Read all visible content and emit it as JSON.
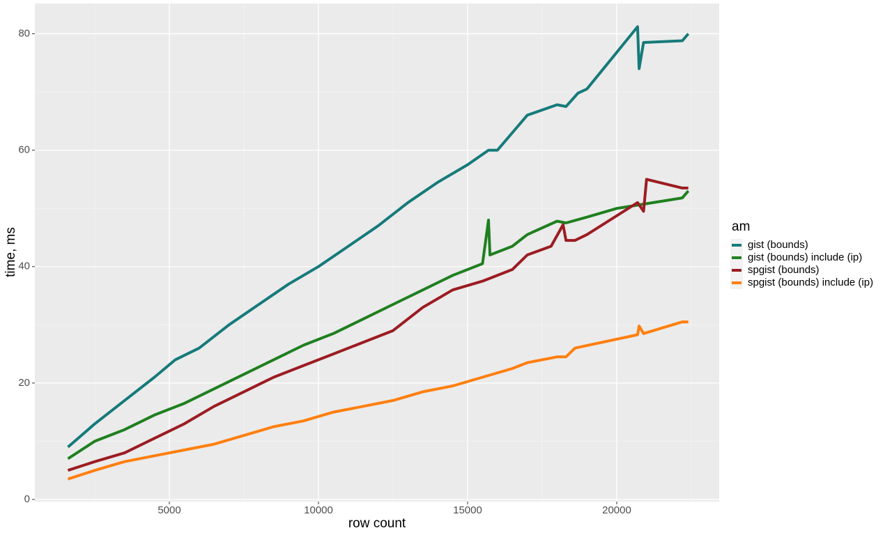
{
  "chart_data": {
    "type": "line",
    "x_label": "row count",
    "y_label": "time, ms",
    "legend_title": "am",
    "xlim": [
      490,
      23435
    ],
    "ylim": [
      -0.36,
      85.2
    ],
    "xticks": [
      5000,
      10000,
      15000,
      20000
    ],
    "yticks": [
      0,
      20,
      40,
      60,
      80
    ],
    "xminorticks": [
      2500,
      7500,
      12500,
      17500,
      22500
    ],
    "yminorticks": [
      10,
      30,
      50,
      70
    ],
    "grid": true,
    "legend_position": "right",
    "series": [
      {
        "name": "gist (bounds)",
        "color": "#167a7a",
        "x": [
          1600,
          2500,
          3500,
          4500,
          5200,
          6000,
          7000,
          8000,
          9000,
          10000,
          11000,
          12000,
          13000,
          14000,
          15000,
          15700,
          16000,
          16500,
          17000,
          18000,
          18300,
          18700,
          19000,
          20700,
          20750,
          20900,
          22200,
          22400
        ],
        "values": [
          9,
          13,
          17,
          21,
          24,
          26,
          30,
          33.5,
          37,
          40,
          43.5,
          47,
          51,
          54.5,
          57.5,
          60,
          60,
          63,
          66,
          67.8,
          67.5,
          69.8,
          70.5,
          81.2,
          74,
          78.5,
          78.8,
          80
        ]
      },
      {
        "name": "gist (bounds) include (ip)",
        "color": "#1f7f1f",
        "x": [
          1600,
          2500,
          3500,
          4500,
          5500,
          6500,
          7500,
          8500,
          9500,
          10500,
          11500,
          12500,
          13500,
          14500,
          15500,
          15700,
          15750,
          16500,
          17000,
          18000,
          18300,
          19000,
          20000,
          22200,
          22400
        ],
        "values": [
          7,
          10,
          12,
          14.5,
          16.5,
          19,
          21.5,
          24,
          26.5,
          28.5,
          31,
          33.5,
          36,
          38.5,
          40.5,
          48,
          42,
          43.5,
          45.5,
          47.8,
          47.5,
          48.5,
          50,
          51.8,
          53
        ]
      },
      {
        "name": "spgist (bounds)",
        "color": "#9b1c22",
        "x": [
          1600,
          2500,
          3500,
          4500,
          5500,
          6500,
          7500,
          8500,
          9500,
          10500,
          11500,
          12500,
          13500,
          14500,
          15500,
          16500,
          17000,
          17800,
          18200,
          18300,
          18600,
          19000,
          20700,
          20900,
          21000,
          22200,
          22400
        ],
        "values": [
          5,
          6.5,
          8,
          10.5,
          13,
          16,
          18.5,
          21,
          23,
          25,
          27,
          29,
          33,
          36,
          37.5,
          39.5,
          42,
          43.5,
          47.2,
          44.5,
          44.5,
          45.5,
          51,
          49.5,
          55,
          53.5,
          53.5
        ]
      },
      {
        "name": "spgist (bounds) include (ip)",
        "color": "#ff7f0e",
        "x": [
          1600,
          2500,
          3500,
          4500,
          5500,
          6500,
          7500,
          8500,
          9500,
          10500,
          11500,
          12500,
          13500,
          14500,
          15500,
          16500,
          17000,
          18000,
          18300,
          18600,
          20700,
          20750,
          20900,
          22200,
          22400
        ],
        "values": [
          3.5,
          5,
          6.5,
          7.5,
          8.5,
          9.5,
          11,
          12.5,
          13.5,
          15,
          16,
          17,
          18.5,
          19.5,
          21,
          22.5,
          23.5,
          24.5,
          24.5,
          26,
          28.3,
          29.8,
          28.5,
          30.5,
          30.5
        ]
      }
    ]
  }
}
